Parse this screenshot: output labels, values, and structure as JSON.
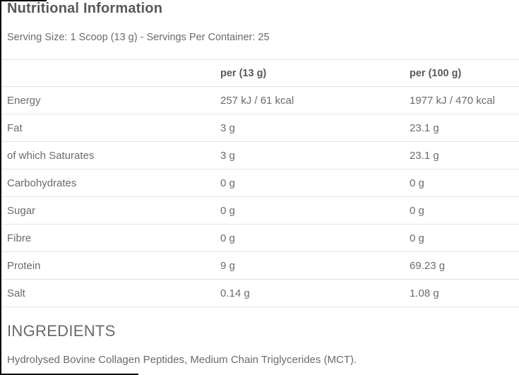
{
  "page": {
    "title": "Nutritional Information",
    "serving_info": "Serving Size: 1 Scoop (13 g) - Servings Per Container: 25"
  },
  "table": {
    "headers": {
      "label": "",
      "per_13g": "per (13 g)",
      "per_100g": "per (100 g)"
    },
    "rows": [
      {
        "label": "Energy",
        "per_13g": "257 kJ / 61 kcal",
        "per_100g": "1977 kJ / 470 kcal"
      },
      {
        "label": "Fat",
        "per_13g": "3 g",
        "per_100g": "23.1 g"
      },
      {
        "label": "of which Saturates",
        "per_13g": "3 g",
        "per_100g": "23.1 g"
      },
      {
        "label": "Carbohydrates",
        "per_13g": "0 g",
        "per_100g": "0 g"
      },
      {
        "label": "Sugar",
        "per_13g": "0 g",
        "per_100g": "0 g"
      },
      {
        "label": "Fibre",
        "per_13g": "0 g",
        "per_100g": "0 g"
      },
      {
        "label": "Protein",
        "per_13g": "9 g",
        "per_100g": "69.23 g"
      },
      {
        "label": "Salt",
        "per_13g": "0.14 g",
        "per_100g": "1.08 g"
      }
    ]
  },
  "ingredients": {
    "title": "INGREDIENTS",
    "text": "Hydrolysed Bovine Collagen Peptides, Medium Chain Triglycerides (MCT)."
  },
  "colors": {
    "heading": "#58595b",
    "body": "#6b6b6b",
    "divider": "#e4e4e4",
    "edge": "#0a0a0a",
    "background": "#ffffff"
  }
}
